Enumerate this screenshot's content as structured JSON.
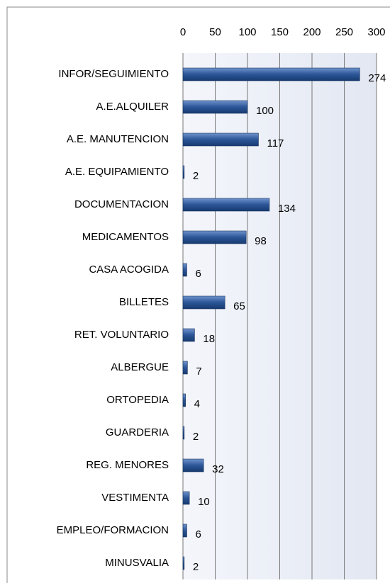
{
  "chart_data": {
    "type": "hbar",
    "categories": [
      "INFOR/SEGUIMIENTO",
      "A.E.ALQUILER",
      "A.E. MANUTENCION",
      "A.E. EQUIPAMIENTO",
      "DOCUMENTACION",
      "MEDICAMENTOS",
      "CASA ACOGIDA",
      "BILLETES",
      "RET. VOLUNTARIO",
      "ALBERGUE",
      "ORTOPEDIA",
      "GUARDERIA",
      "REG. MENORES",
      "VESTIMENTA",
      "EMPLEO/FORMACION",
      "MINUSVALIA"
    ],
    "values": [
      274,
      100,
      117,
      2,
      134,
      98,
      6,
      65,
      18,
      7,
      4,
      2,
      32,
      10,
      6,
      2
    ],
    "color": "#2b5597",
    "xlim": [
      0,
      300
    ],
    "xticks": [
      0,
      50,
      100,
      150,
      200,
      250,
      300
    ],
    "grid": true
  }
}
